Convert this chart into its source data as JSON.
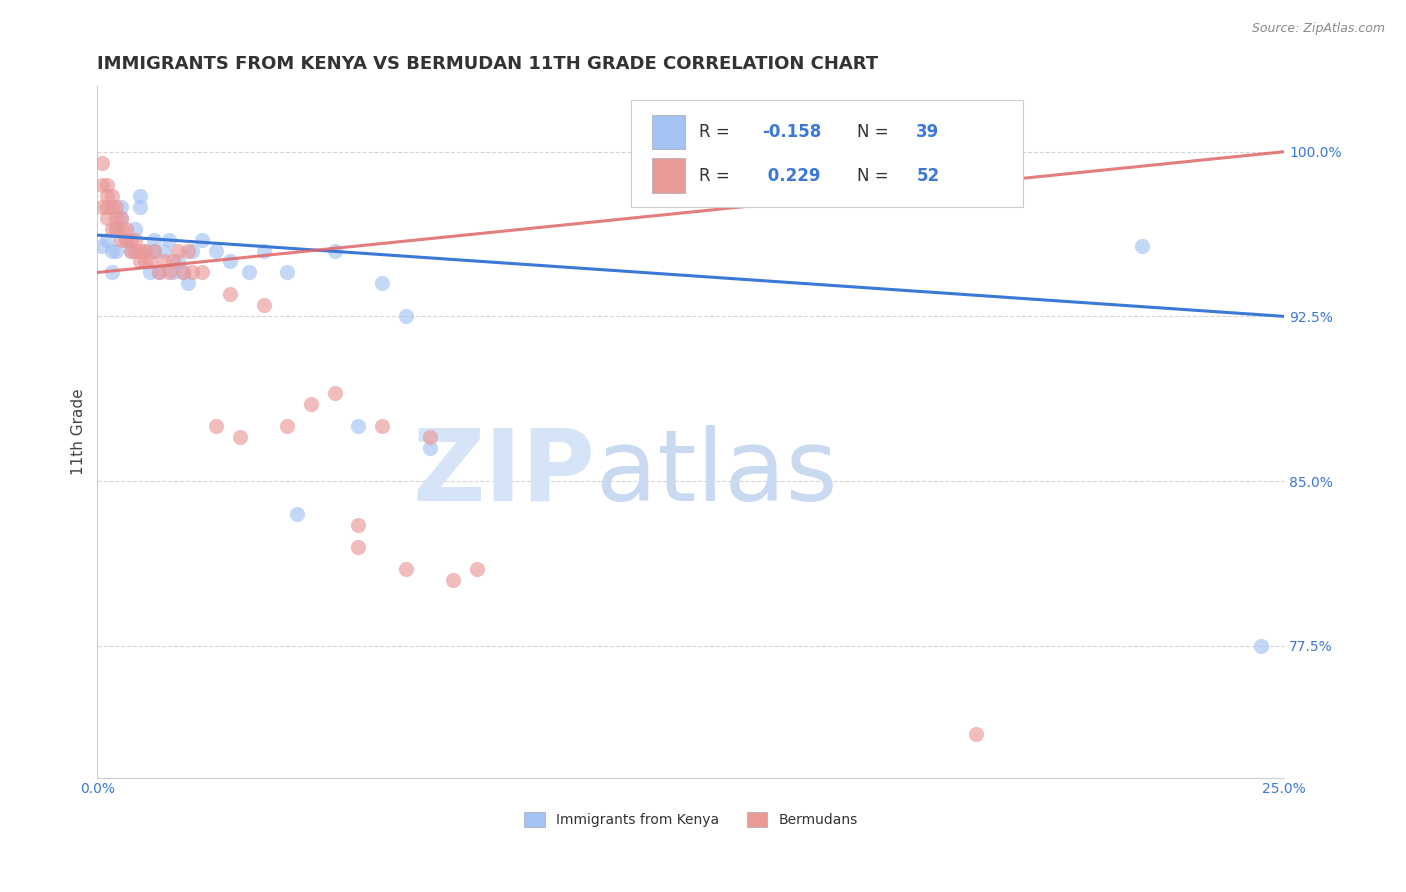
{
  "title": "IMMIGRANTS FROM KENYA VS BERMUDAN 11TH GRADE CORRELATION CHART",
  "source": "Source: ZipAtlas.com",
  "ylabel": "11th Grade",
  "xlim": [
    0.0,
    0.25
  ],
  "ylim": [
    0.715,
    1.03
  ],
  "x_ticks": [
    0.0,
    0.05,
    0.1,
    0.15,
    0.2,
    0.25
  ],
  "x_tick_labels": [
    "0.0%",
    "",
    "",
    "",
    "",
    "25.0%"
  ],
  "y_ticks": [
    0.775,
    0.85,
    0.925,
    1.0
  ],
  "y_tick_labels": [
    "77.5%",
    "85.0%",
    "92.5%",
    "100.0%"
  ],
  "watermark_zip": "ZIP",
  "watermark_atlas": "atlas",
  "blue_scatter_x": [
    0.001,
    0.002,
    0.003,
    0.003,
    0.004,
    0.004,
    0.005,
    0.005,
    0.006,
    0.007,
    0.008,
    0.009,
    0.009,
    0.01,
    0.011,
    0.012,
    0.012,
    0.013,
    0.014,
    0.015,
    0.016,
    0.017,
    0.018,
    0.019,
    0.02,
    0.022,
    0.025,
    0.028,
    0.032,
    0.035,
    0.04,
    0.042,
    0.05,
    0.055,
    0.06,
    0.065,
    0.07,
    0.22,
    0.245
  ],
  "blue_scatter_y": [
    0.957,
    0.96,
    0.955,
    0.945,
    0.965,
    0.955,
    0.97,
    0.975,
    0.96,
    0.955,
    0.965,
    0.975,
    0.98,
    0.955,
    0.945,
    0.96,
    0.955,
    0.945,
    0.955,
    0.96,
    0.945,
    0.95,
    0.945,
    0.94,
    0.955,
    0.96,
    0.955,
    0.95,
    0.945,
    0.955,
    0.945,
    0.835,
    0.955,
    0.875,
    0.94,
    0.925,
    0.865,
    0.957,
    0.775
  ],
  "pink_scatter_x": [
    0.001,
    0.001,
    0.001,
    0.002,
    0.002,
    0.002,
    0.002,
    0.003,
    0.003,
    0.003,
    0.004,
    0.004,
    0.004,
    0.005,
    0.005,
    0.005,
    0.006,
    0.006,
    0.007,
    0.007,
    0.008,
    0.008,
    0.009,
    0.009,
    0.01,
    0.01,
    0.011,
    0.012,
    0.013,
    0.014,
    0.015,
    0.016,
    0.017,
    0.018,
    0.019,
    0.02,
    0.022,
    0.025,
    0.028,
    0.03,
    0.035,
    0.04,
    0.045,
    0.05,
    0.055,
    0.055,
    0.06,
    0.065,
    0.07,
    0.075,
    0.08,
    0.185
  ],
  "pink_scatter_y": [
    0.995,
    0.985,
    0.975,
    0.985,
    0.98,
    0.975,
    0.97,
    0.98,
    0.975,
    0.965,
    0.975,
    0.97,
    0.965,
    0.97,
    0.965,
    0.96,
    0.965,
    0.96,
    0.96,
    0.955,
    0.96,
    0.955,
    0.955,
    0.95,
    0.955,
    0.95,
    0.95,
    0.955,
    0.945,
    0.95,
    0.945,
    0.95,
    0.955,
    0.945,
    0.955,
    0.945,
    0.945,
    0.875,
    0.935,
    0.87,
    0.93,
    0.875,
    0.885,
    0.89,
    0.83,
    0.82,
    0.875,
    0.81,
    0.87,
    0.805,
    0.81,
    0.735
  ],
  "blue_line_x": [
    0.0,
    0.25
  ],
  "blue_line_y": [
    0.962,
    0.925
  ],
  "pink_line_x": [
    0.0,
    0.25
  ],
  "pink_line_y": [
    0.945,
    1.0
  ],
  "dot_size": 120,
  "blue_color": "#a4c2f4",
  "pink_color": "#ea9999",
  "blue_line_color": "#3c78d8",
  "pink_line_color": "#e06666",
  "grid_color": "#cccccc",
  "background_color": "#ffffff",
  "watermark_color": "#d6e4f7",
  "title_color": "#333333",
  "source_color": "#888888",
  "ylabel_color": "#444444",
  "tick_color": "#3c78d8",
  "legend_text_color": "#3c78d8",
  "legend_r_label_color": "#333333",
  "title_fontsize": 13,
  "axis_label_fontsize": 11,
  "tick_fontsize": 10,
  "legend_fontsize": 12
}
